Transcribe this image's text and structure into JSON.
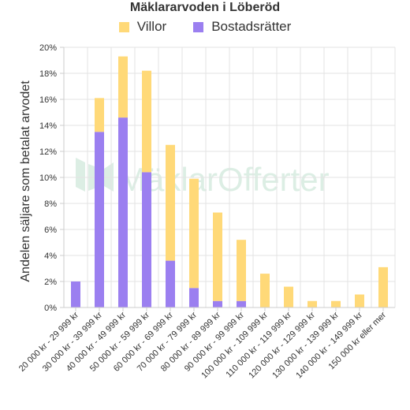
{
  "chart_data": {
    "type": "bar",
    "stacked": true,
    "title": "Mäklararvoden i Löberöd",
    "ylabel": "Andelen säljare som betalat arvodet",
    "xlabel": "",
    "ylim": [
      0,
      20
    ],
    "y_ticks": [
      "0%",
      "2%",
      "4%",
      "6%",
      "8%",
      "10%",
      "12%",
      "14%",
      "16%",
      "18%",
      "20%"
    ],
    "grid": true,
    "legend_position": "top",
    "categories": [
      "20 000 kr - 29 999 kr",
      "30 000 kr - 39 999 kr",
      "40 000 kr - 49 999 kr",
      "50 000 kr - 59 999 kr",
      "60 000 kr - 69 999 kr",
      "70 000 kr - 79 999 kr",
      "80 000 kr - 89 999 kr",
      "90 000 kr - 99 999 kr",
      "100 000 kr - 109 999 kr",
      "110 000 kr - 119 999 kr",
      "120 000 kr - 129 999 kr",
      "130 000 kr - 139 999 kr",
      "140 000 kr - 149 999 kr",
      "150 000 kr eller mer"
    ],
    "series": [
      {
        "name": "Bostadsrätter",
        "color": "#9b7ff0",
        "values": [
          2.0,
          13.5,
          14.6,
          10.4,
          3.6,
          1.5,
          0.5,
          0.5,
          0,
          0,
          0,
          0,
          0,
          0
        ]
      },
      {
        "name": "Villor",
        "color": "#ffd978",
        "values": [
          0,
          2.6,
          4.7,
          7.8,
          8.9,
          8.4,
          6.8,
          4.7,
          2.6,
          1.6,
          0.5,
          0.5,
          1.0,
          3.1
        ]
      }
    ]
  },
  "legend_order": [
    "Villor",
    "Bostadsrätter"
  ],
  "watermark": {
    "text": "MäklarOfferter"
  }
}
